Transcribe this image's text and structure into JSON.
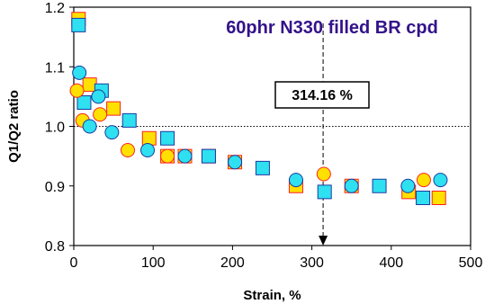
{
  "chart_data": {
    "type": "scatter",
    "title": "60phr N330 filled BR cpd",
    "xlabel": "Strain, %",
    "ylabel": "Q1/Q2 ratio",
    "xlim": [
      0,
      500
    ],
    "ylim": [
      0.8,
      1.2
    ],
    "x_ticks": [
      0,
      100,
      200,
      300,
      400,
      500
    ],
    "y_ticks": [
      0.8,
      0.9,
      1.0,
      1.1,
      1.2
    ],
    "x_tick_labels": [
      "0",
      "100",
      "200",
      "300",
      "400",
      "500"
    ],
    "y_tick_labels": [
      "0.8",
      "0.9",
      "1.0",
      "1.1",
      "1.2"
    ],
    "reference_line_y": 1.0,
    "marker_line_x": 314.16,
    "callout_label": "314.16 %",
    "colors": {
      "title": "#33128a",
      "yellow_fill": "#ffe000",
      "yellow_edge": "#ff2020",
      "cyan_fill": "#2ee0f0",
      "cyan_edge": "#1a3aa0"
    },
    "series": [
      {
        "marker": "square",
        "fill": "#ffe000",
        "edge": "#ff2020",
        "x": [
          6,
          20,
          50,
          95,
          118,
          140,
          170,
          203,
          280,
          350,
          422,
          460
        ],
        "y": [
          1.18,
          1.07,
          1.03,
          0.98,
          0.95,
          0.95,
          0.95,
          0.94,
          0.9,
          0.9,
          0.89,
          0.88
        ]
      },
      {
        "marker": "square",
        "fill": "#2ee0f0",
        "edge": "#1a3aa0",
        "x": [
          6,
          13,
          35,
          70,
          118,
          170,
          238,
          316,
          385,
          440
        ],
        "y": [
          1.17,
          1.04,
          1.06,
          1.01,
          0.98,
          0.95,
          0.93,
          0.89,
          0.9,
          0.88
        ]
      },
      {
        "marker": "circle",
        "fill": "#ffe000",
        "edge": "#ff2020",
        "x": [
          4,
          11,
          33,
          68,
          118,
          315,
          441
        ],
        "y": [
          1.06,
          1.01,
          1.02,
          0.96,
          0.95,
          0.92,
          0.91
        ]
      },
      {
        "marker": "circle",
        "fill": "#2ee0f0",
        "edge": "#1a3aa0",
        "x": [
          7,
          20,
          31,
          48,
          93,
          140,
          203,
          280,
          350,
          421,
          462
        ],
        "y": [
          1.09,
          1.0,
          1.05,
          0.99,
          0.96,
          0.95,
          0.94,
          0.91,
          0.9,
          0.9,
          0.91
        ]
      }
    ]
  }
}
